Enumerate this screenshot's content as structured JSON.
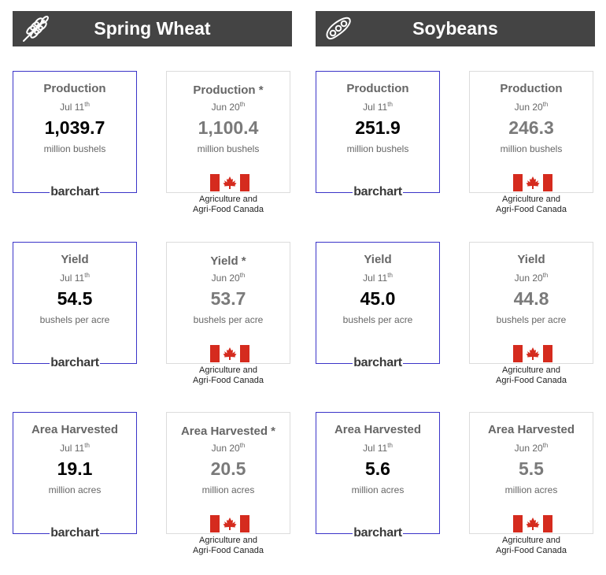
{
  "crops": [
    {
      "name": "Spring Wheat",
      "icon": "wheat-icon",
      "cards": [
        {
          "label": "Production",
          "date": "Jul 11",
          "date_sup": "th",
          "value": "1,039.7",
          "unit": "million bushels",
          "source": "barchart"
        },
        {
          "label": "Production *",
          "date": "Jun 20",
          "date_sup": "th",
          "value": "1,100.4",
          "unit": "million bushels",
          "source_line1": "Agriculture and",
          "source_line2": "Agri-Food Canada"
        },
        {
          "label": "Yield",
          "date": "Jul 11",
          "date_sup": "th",
          "value": "54.5",
          "unit": "bushels per acre",
          "source": "barchart"
        },
        {
          "label": "Yield *",
          "date": "Jun 20",
          "date_sup": "th",
          "value": "53.7",
          "unit": "bushels per acre",
          "source_line1": "Agriculture and",
          "source_line2": "Agri-Food Canada"
        },
        {
          "label": "Area Harvested",
          "date": "Jul 11",
          "date_sup": "th",
          "value": "19.1",
          "unit": "million acres",
          "source": "barchart"
        },
        {
          "label": "Area Harvested *",
          "date": "Jun 20",
          "date_sup": "th",
          "value": "20.5",
          "unit": "million acres",
          "source_line1": "Agriculture and",
          "source_line2": "Agri-Food Canada"
        }
      ]
    },
    {
      "name": "Soybeans",
      "icon": "soybean-pod-icon",
      "cards": [
        {
          "label": "Production",
          "date": "Jul 11",
          "date_sup": "th",
          "value": "251.9",
          "unit": "million bushels",
          "source": "barchart"
        },
        {
          "label": "Production",
          "date": "Jun 20",
          "date_sup": "th",
          "value": "246.3",
          "unit": "million bushels",
          "source_line1": "Agriculture and",
          "source_line2": "Agri-Food Canada"
        },
        {
          "label": "Yield",
          "date": "Jul 11",
          "date_sup": "th",
          "value": "45.0",
          "unit": "bushels per acre",
          "source": "barchart"
        },
        {
          "label": "Yield",
          "date": "Jun 20",
          "date_sup": "th",
          "value": "44.8",
          "unit": "bushels per acre",
          "source_line1": "Agriculture and",
          "source_line2": "Agri-Food Canada"
        },
        {
          "label": "Area Harvested",
          "date": "Jul 11",
          "date_sup": "th",
          "value": "5.6",
          "unit": "million acres",
          "source": "barchart"
        },
        {
          "label": "Area Harvested",
          "date": "Jun 20",
          "date_sup": "th",
          "value": "5.5",
          "unit": "million acres",
          "source_line1": "Agriculture and",
          "source_line2": "Agri-Food Canada"
        }
      ]
    }
  ],
  "colors": {
    "header_bg": "#444444",
    "barchart_border": "#3b34c8",
    "canada_border": "#dcdcdc",
    "flag_red": "#d52b1e"
  }
}
